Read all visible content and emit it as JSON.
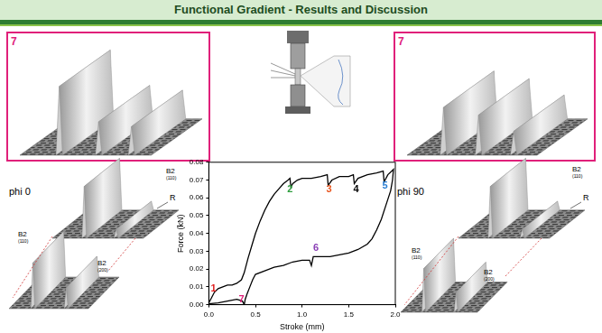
{
  "slide": {
    "title": "Functional Gradient - Results and Discussion",
    "top_panels": [
      {
        "label": "7",
        "color": "#e0207a"
      },
      {
        "label": "7",
        "color": "#e0207a"
      }
    ],
    "left": {
      "caption": "phi 0",
      "main": {
        "peak": "B2",
        "index": "(110)",
        "marker": "R"
      },
      "inset": [
        {
          "peak": "B2",
          "index": "(110)"
        },
        {
          "peak": "B2",
          "index": "(200)"
        }
      ]
    },
    "right": {
      "caption": "phi 90",
      "main": {
        "peak": "B2",
        "index": "(110)",
        "marker": "R"
      },
      "inset": [
        {
          "peak": "B2",
          "index": "(110)"
        },
        {
          "peak": "B2",
          "index": "(200)"
        }
      ]
    }
  },
  "chart_data": {
    "type": "line",
    "x_label": "Stroke (mm)",
    "y_label": "Force (kN)",
    "color": "#000000",
    "x": [
      0,
      0.03,
      0.06,
      0.1,
      0.15,
      0.2,
      0.25,
      0.3,
      0.35,
      0.38,
      0.42,
      0.46,
      0.5,
      0.55,
      0.6,
      0.65,
      0.7,
      0.75,
      0.8,
      0.85,
      0.87,
      0.88,
      0.9,
      0.95,
      1.0,
      1.1,
      1.2,
      1.27,
      1.28,
      1.32,
      1.4,
      1.5,
      1.55,
      1.56,
      1.6,
      1.7,
      1.8,
      1.87,
      1.88,
      1.92,
      1.96,
      1.98,
      1.97,
      1.95,
      1.9,
      1.85,
      1.8,
      1.75,
      1.7,
      1.6,
      1.5,
      1.4,
      1.3,
      1.2,
      1.12,
      1.1,
      1.08,
      1.0,
      0.9,
      0.8,
      0.7,
      0.6,
      0.5,
      0.47,
      0.44,
      0.41,
      0.39,
      0.38,
      0.36,
      0.3,
      0.2,
      0.1,
      0
    ],
    "values": [
      0.001,
      0.004,
      0.007,
      0.009,
      0.01,
      0.011,
      0.011,
      0.012,
      0.014,
      0.018,
      0.026,
      0.033,
      0.04,
      0.047,
      0.053,
      0.058,
      0.062,
      0.065,
      0.068,
      0.07,
      0.071,
      0.066,
      0.068,
      0.07,
      0.071,
      0.071,
      0.072,
      0.073,
      0.067,
      0.07,
      0.072,
      0.072,
      0.073,
      0.068,
      0.071,
      0.073,
      0.074,
      0.075,
      0.069,
      0.073,
      0.075,
      0.076,
      0.07,
      0.064,
      0.056,
      0.048,
      0.042,
      0.037,
      0.034,
      0.031,
      0.029,
      0.028,
      0.027,
      0.027,
      0.027,
      0.022,
      0.025,
      0.025,
      0.024,
      0.022,
      0.021,
      0.019,
      0.017,
      0.014,
      0.01,
      0.006,
      0.003,
      0.0,
      0.002,
      0.003,
      0.002,
      0.001,
      0.0005
    ],
    "xlim": [
      0,
      2.0
    ],
    "xticks": [
      {
        "value": 0,
        "label": "0.0"
      },
      0.5,
      {
        "value": 1,
        "label": "1.0"
      },
      1.5,
      {
        "value": 2,
        "label": "2.0"
      }
    ],
    "ylim": [
      0,
      0.08
    ],
    "yticks": [
      {
        "value": 0,
        "label": "0.00"
      },
      0.01,
      0.02,
      0.03,
      0.04,
      0.05,
      0.06,
      0.07,
      {
        "value": 0.08,
        "label": "0.08"
      }
    ],
    "grid": false,
    "annotations": [
      {
        "text": "1",
        "x": 0.02,
        "y": 0.006,
        "color": "#e02020"
      },
      {
        "text": "7",
        "x": 0.32,
        "y": 0.0,
        "color": "#e0207a"
      },
      {
        "text": "2",
        "x": 0.84,
        "y": 0.062,
        "color": "#2e9e3e"
      },
      {
        "text": "3",
        "x": 1.26,
        "y": 0.062,
        "color": "#e8541c"
      },
      {
        "text": "4",
        "x": 1.55,
        "y": 0.062,
        "color": "#000000"
      },
      {
        "text": "5",
        "x": 1.86,
        "y": 0.064,
        "color": "#2a7fd4"
      },
      {
        "text": "6",
        "x": 1.12,
        "y": 0.029,
        "color": "#8a3fb5"
      }
    ]
  }
}
